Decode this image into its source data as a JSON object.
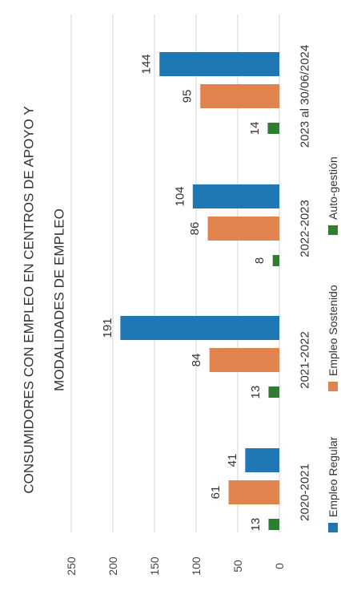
{
  "chart_data": {
    "type": "bar",
    "orientation": "rotated-90",
    "title_lines": [
      "CONSUMIDORES CON EMPLEO EN CENTROS DE APOYO Y",
      "MODALIDADES DE EMPLEO"
    ],
    "categories": [
      "2020-2021",
      "2021-2022",
      "2022-2023",
      "2023 al 30/06/2024"
    ],
    "series": [
      {
        "name": "Empleo Regular",
        "color": "#1f78b4",
        "values": [
          41,
          191,
          104,
          144
        ]
      },
      {
        "name": "Empleo Sostenido",
        "color": "#e0834f",
        "values": [
          61,
          84,
          86,
          95
        ]
      },
      {
        "name": "Auto-gestión",
        "color": "#2e7d32",
        "values": [
          13,
          13,
          8,
          14
        ]
      }
    ],
    "value_axis": {
      "min": 0,
      "max": 250,
      "ticks": [
        0,
        50,
        100,
        150,
        200,
        250
      ]
    },
    "grid": true,
    "legend_position": "bottom",
    "data_labels": true
  }
}
